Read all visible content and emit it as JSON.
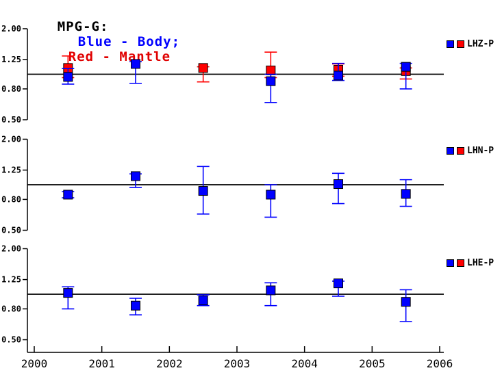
{
  "chart_data": {
    "type": "scatter",
    "title_parts": [
      {
        "text": "MPG-G:",
        "color": "#000000"
      },
      {
        "text": "Blue - Body;",
        "color": "#0000ff"
      },
      {
        "text": "Red - Mantle",
        "color": "#e00000"
      }
    ],
    "x_axis": {
      "min": 2000,
      "max": 2006,
      "tick_labels": [
        "2000",
        "2001",
        "2002",
        "2003",
        "2004",
        "2005",
        "2006"
      ]
    },
    "y_axis": {
      "scale": "log",
      "tick_labels": [
        "2.00",
        "1.25",
        "0.80",
        "0.50"
      ],
      "tick_values": [
        2.0,
        1.25,
        0.8,
        0.5
      ],
      "reference_value": 1.0
    },
    "series": [
      {
        "id": "body",
        "name": "Body",
        "color": "#0000ff",
        "marker": "square"
      },
      {
        "id": "mantle",
        "name": "Mantle",
        "color": "#ff0000",
        "marker": "square"
      }
    ],
    "panels": [
      {
        "label": "LHZ-P",
        "points": [
          {
            "x": 2000.5,
            "mantle": {
              "value": 1.1,
              "lo": 0.95,
              "hi": 1.32
            },
            "body": {
              "value": 0.96,
              "lo": 0.86,
              "hi": 1.09
            }
          },
          {
            "x": 2001.5,
            "body": {
              "value": 1.17,
              "lo": 0.87,
              "hi": 1.21
            }
          },
          {
            "x": 2002.5,
            "mantle": {
              "value": 1.1,
              "lo": 0.89,
              "hi": 1.12
            }
          },
          {
            "x": 2003.5,
            "mantle": {
              "value": 1.06,
              "lo": 0.95,
              "hi": 1.4
            },
            "body": {
              "value": 0.9,
              "lo": 0.65,
              "hi": 1.0
            }
          },
          {
            "x": 2004.5,
            "mantle": {
              "value": 1.07,
              "lo": 0.97,
              "hi": 1.17
            },
            "body": {
              "value": 0.98,
              "lo": 0.91,
              "hi": 1.18
            }
          },
          {
            "x": 2005.5,
            "mantle": {
              "value": 1.05,
              "lo": 0.93,
              "hi": 1.1
            },
            "body": {
              "value": 1.12,
              "lo": 0.8,
              "hi": 1.18
            }
          }
        ]
      },
      {
        "label": "LHN-P",
        "points": [
          {
            "x": 2000.5,
            "body": {
              "value": 0.86,
              "lo": 0.82,
              "hi": 0.9
            }
          },
          {
            "x": 2001.5,
            "body": {
              "value": 1.14,
              "lo": 0.96,
              "hi": 1.18
            }
          },
          {
            "x": 2002.5,
            "body": {
              "value": 0.91,
              "lo": 0.64,
              "hi": 1.32
            }
          },
          {
            "x": 2003.5,
            "body": {
              "value": 0.86,
              "lo": 0.61,
              "hi": 1.0
            }
          },
          {
            "x": 2004.5,
            "body": {
              "value": 1.01,
              "lo": 0.75,
              "hi": 1.19
            }
          },
          {
            "x": 2005.5,
            "body": {
              "value": 0.87,
              "lo": 0.72,
              "hi": 1.08
            }
          }
        ]
      },
      {
        "label": "LHE-P",
        "points": [
          {
            "x": 2000.5,
            "body": {
              "value": 1.02,
              "lo": 0.8,
              "hi": 1.12
            }
          },
          {
            "x": 2001.5,
            "body": {
              "value": 0.84,
              "lo": 0.73,
              "hi": 0.94
            }
          },
          {
            "x": 2002.5,
            "body": {
              "value": 0.91,
              "lo": 0.84,
              "hi": 0.99
            }
          },
          {
            "x": 2003.5,
            "body": {
              "value": 1.06,
              "lo": 0.84,
              "hi": 1.19
            }
          },
          {
            "x": 2004.5,
            "body": {
              "value": 1.18,
              "lo": 0.97,
              "hi": 1.22
            }
          },
          {
            "x": 2005.5,
            "body": {
              "value": 0.89,
              "lo": 0.66,
              "hi": 1.07
            }
          }
        ]
      }
    ]
  }
}
